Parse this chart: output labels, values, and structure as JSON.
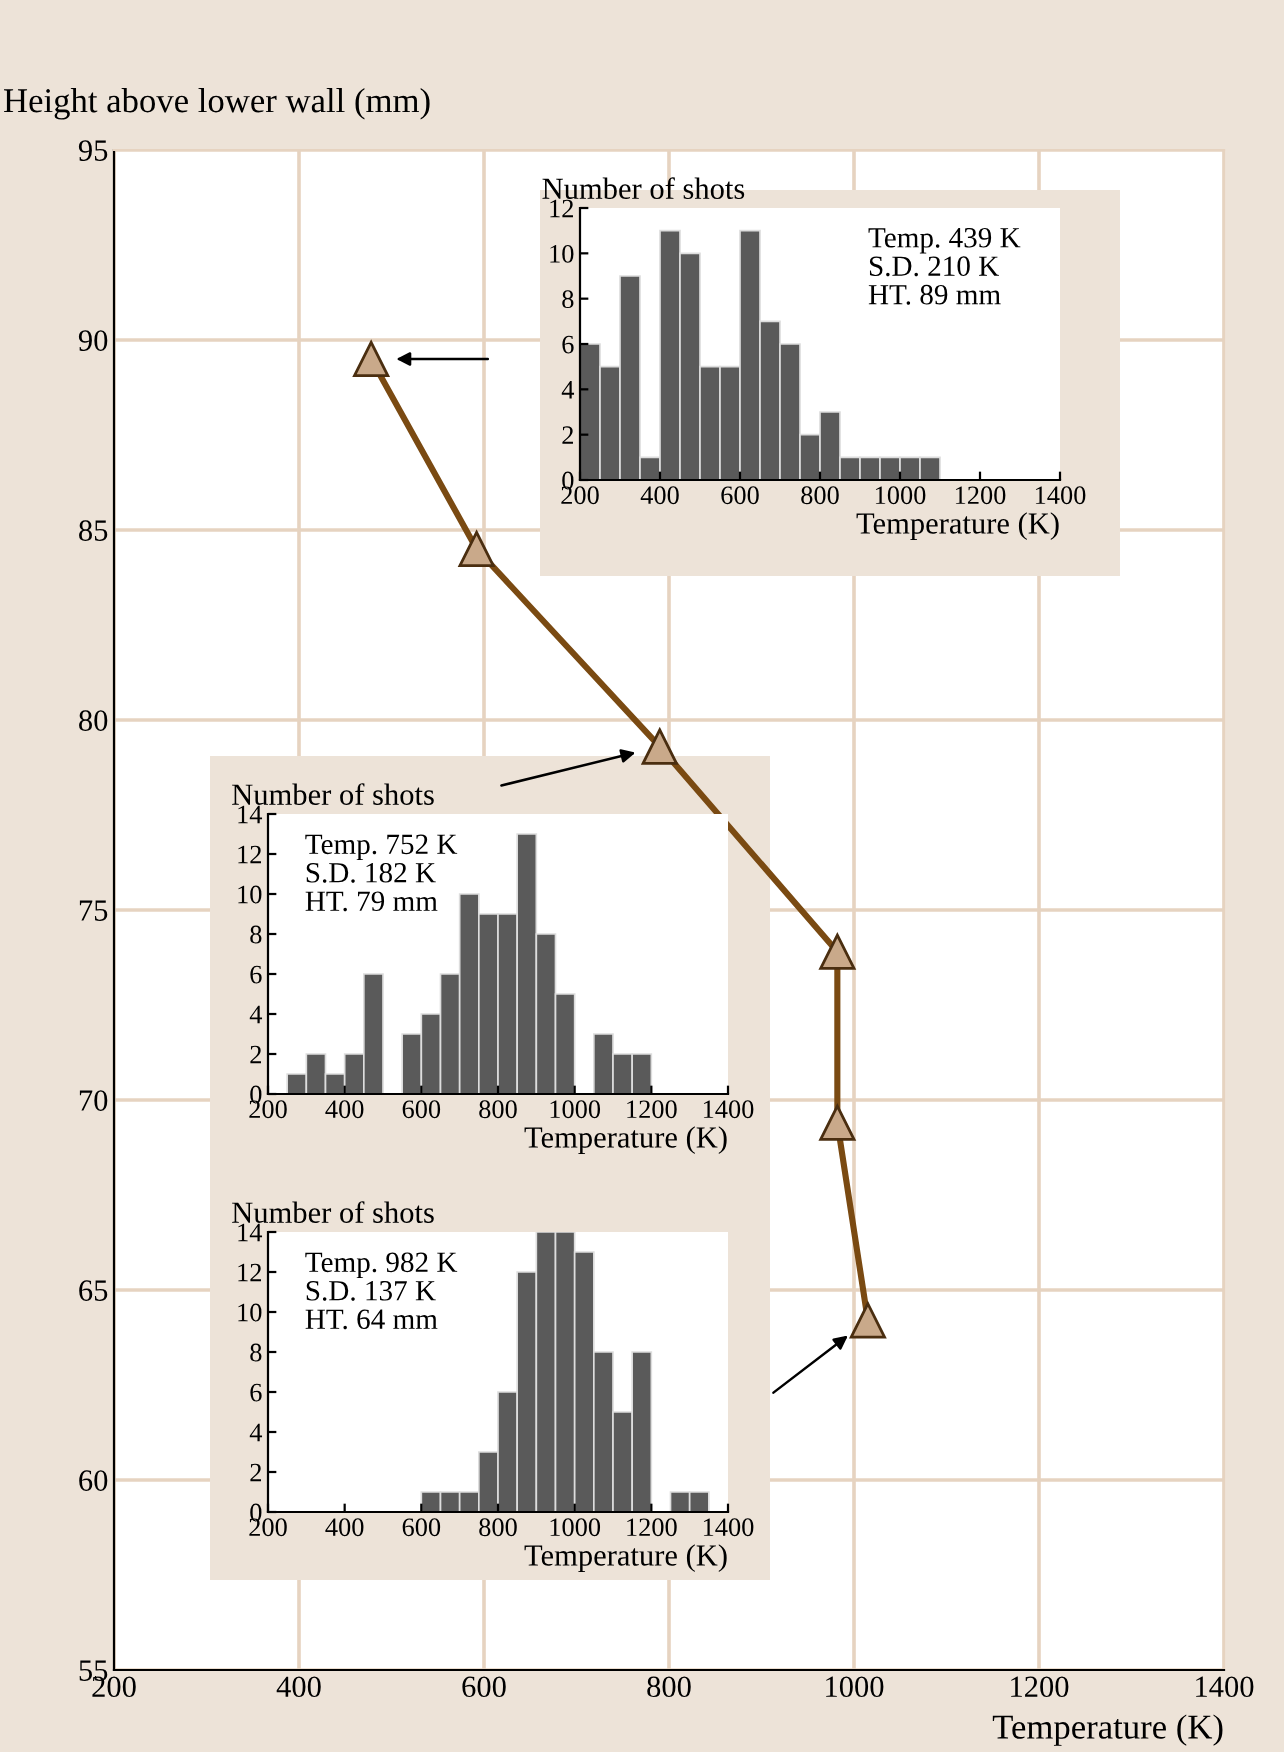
{
  "chart_data": [
    {
      "type": "line",
      "xlabel": "Temperature (K)",
      "ylabel": "Height above lower wall (mm)",
      "x": [
        478,
        592,
        790,
        982,
        982,
        1015
      ],
      "values": [
        89.5,
        84.5,
        79.3,
        73.9,
        69.4,
        64.2
      ],
      "color": "#7a4a12",
      "marker": "triangle",
      "line_style": "solid",
      "xlim": [
        200,
        1400
      ],
      "ylim": [
        55,
        95
      ],
      "xticks": [
        200,
        400,
        600,
        800,
        1000,
        1200,
        1400
      ],
      "yticks": [
        55,
        60,
        65,
        70,
        75,
        80,
        85,
        90,
        95
      ],
      "grid": true
    },
    {
      "type": "histogram",
      "xlabel": "Temperature (K)",
      "ylabel": "Number of shots",
      "bins": [
        200,
        250,
        300,
        350,
        400,
        450,
        500,
        550,
        600,
        650,
        700,
        750,
        800,
        850,
        900,
        950,
        1000,
        1050,
        1100,
        1150,
        1200,
        1250,
        1300,
        1350,
        1400
      ],
      "values": [
        6,
        5,
        9,
        1,
        11,
        10,
        5,
        5,
        11,
        7,
        6,
        2,
        3,
        1,
        1,
        1,
        1,
        1,
        0,
        0,
        0,
        0,
        0,
        0
      ],
      "color": "#5a5a5a",
      "xlim": [
        200,
        1400
      ],
      "ylim": [
        0,
        12
      ],
      "xticks": [
        200,
        400,
        600,
        800,
        1000,
        1200,
        1400
      ],
      "yticks": [
        0,
        2,
        4,
        6,
        8,
        10,
        12
      ],
      "annotations": [
        "Temp. 439 K\nS.D. 210 K\nHT. 89 mm"
      ]
    },
    {
      "type": "histogram",
      "xlabel": "Temperature (K)",
      "ylabel": "Number of shots",
      "bins": [
        200,
        250,
        300,
        350,
        400,
        450,
        500,
        550,
        600,
        650,
        700,
        750,
        800,
        850,
        900,
        950,
        1000,
        1050,
        1100,
        1150,
        1200,
        1250,
        1300,
        1350,
        1400
      ],
      "values": [
        0,
        1,
        2,
        1,
        2,
        6,
        0,
        3,
        4,
        6,
        10,
        9,
        9,
        13,
        8,
        5,
        0,
        3,
        2,
        2,
        0,
        0,
        0,
        0
      ],
      "color": "#5a5a5a",
      "xlim": [
        200,
        1400
      ],
      "ylim": [
        0,
        14
      ],
      "xticks": [
        200,
        400,
        600,
        800,
        1000,
        1200,
        1400
      ],
      "yticks": [
        0,
        2,
        4,
        6,
        8,
        10,
        12,
        14
      ],
      "annotations": [
        "Temp. 752 K\nS.D. 182 K\nHT. 79 mm"
      ]
    },
    {
      "type": "histogram",
      "xlabel": "Temperature (K)",
      "ylabel": "Number of shots",
      "bins": [
        200,
        250,
        300,
        350,
        400,
        450,
        500,
        550,
        600,
        650,
        700,
        750,
        800,
        850,
        900,
        950,
        1000,
        1050,
        1100,
        1150,
        1200,
        1250,
        1300,
        1350,
        1400
      ],
      "values": [
        0,
        0,
        0,
        0,
        0,
        0,
        0,
        0,
        1,
        1,
        1,
        3,
        6,
        12,
        14,
        14,
        13,
        8,
        5,
        8,
        0,
        1,
        1,
        0
      ],
      "color": "#5a5a5a",
      "xlim": [
        200,
        1400
      ],
      "ylim": [
        0,
        14
      ],
      "xticks": [
        200,
        400,
        600,
        800,
        1000,
        1200,
        1400
      ],
      "yticks": [
        0,
        2,
        4,
        6,
        8,
        10,
        12,
        14
      ],
      "annotations": [
        "Temp. 982 K\nS.D. 137 K\nHT. 64 mm"
      ]
    }
  ]
}
